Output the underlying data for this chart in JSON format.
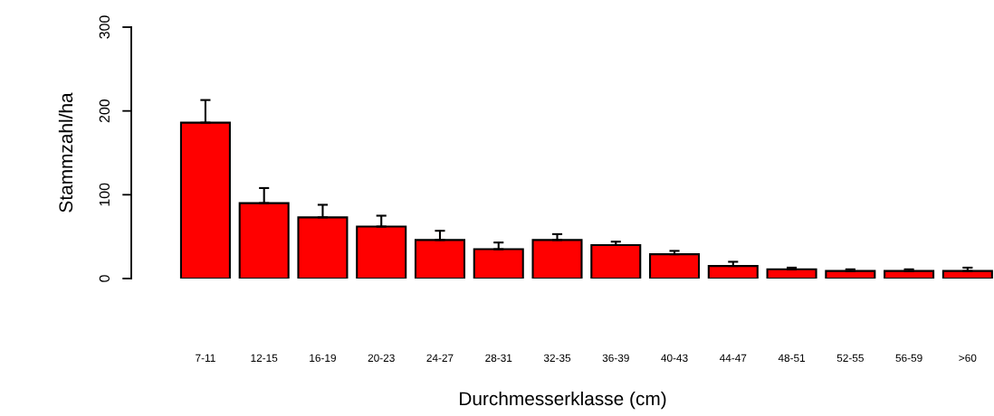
{
  "chart_data": {
    "type": "bar",
    "xlabel": "Durchmesserklasse (cm)",
    "ylabel": "Stammzahl/ha",
    "categories": [
      "7-11",
      "12-15",
      "16-19",
      "20-23",
      "24-27",
      "28-31",
      "32-35",
      "36-39",
      "40-43",
      "44-47",
      "48-51",
      "52-55",
      "56-59",
      ">60"
    ],
    "values": [
      186,
      90,
      73,
      62,
      46,
      35,
      46,
      40,
      29,
      15,
      11,
      9,
      9,
      9
    ],
    "errors": [
      [
        186,
        213
      ],
      [
        90,
        108
      ],
      [
        73,
        88
      ],
      [
        62,
        75
      ],
      [
        46,
        57
      ],
      [
        35,
        43
      ],
      [
        46,
        53
      ],
      [
        40,
        44
      ],
      [
        29,
        33
      ],
      [
        15,
        20
      ],
      [
        11,
        13
      ],
      [
        9,
        11
      ],
      [
        9,
        11
      ],
      [
        9,
        13
      ]
    ],
    "color": "#ff0000",
    "ylim": [
      0,
      300
    ],
    "yticks": [
      0,
      100,
      200,
      300
    ],
    "grid": false,
    "legend": false
  }
}
